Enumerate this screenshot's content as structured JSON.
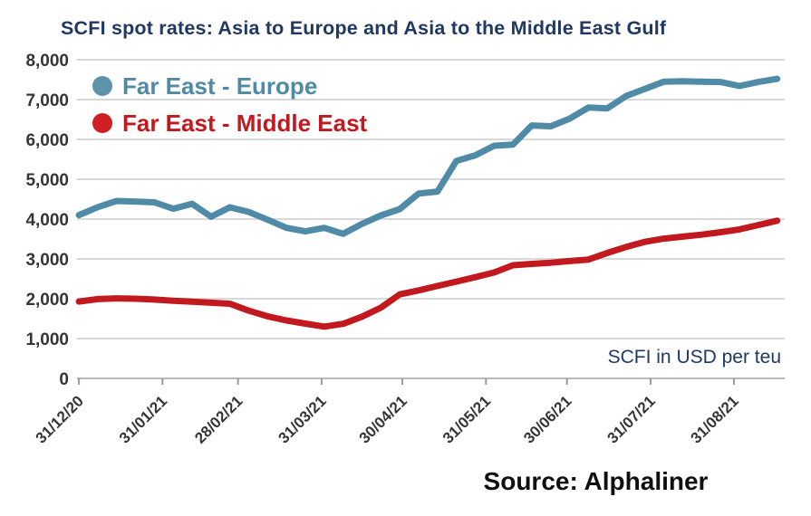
{
  "header": {
    "title": "SCFI spot rates: Asia to Europe and Asia to the Middle East Gulf"
  },
  "footer": {
    "source": "Source: Alphaliner"
  },
  "colors": {
    "title_navy": "#1f3864",
    "europe_line": "#4f8ba6",
    "europe_marker": "#5e93ac",
    "middle_east_line": "#c2191f",
    "middle_east_marker": "#d11f26",
    "axis_text": "#353535",
    "gridline": "#d9d9d9",
    "axis_line": "#b9b9b9",
    "tick_mark": "#9a9a9a",
    "background": "#ffffff"
  },
  "chart_data": {
    "type": "line",
    "title": "SCFI spot rates: Asia to Europe and Asia to the Middle East Gulf",
    "xlabel": "",
    "ylabel": "",
    "annotation": "SCFI in USD per teu",
    "source": "Source: Alphaliner",
    "ylim": [
      0,
      8000
    ],
    "y_ticks": [
      0,
      1000,
      2000,
      3000,
      4000,
      5000,
      6000,
      7000,
      8000
    ],
    "y_tick_labels": [
      "0",
      "1,000",
      "2,000",
      "3,000",
      "4,000",
      "5,000",
      "6,000",
      "7,000",
      "8,000"
    ],
    "grid": "horizontal",
    "legend_position": "inside-top-left",
    "x_unit": "weekly observations, 31/12/20 to mid-Sep 21",
    "x_tick_labels": [
      "31/12/20",
      "31/01/21",
      "28/02/21",
      "31/03/21",
      "30/04/21",
      "31/05/21",
      "30/06/21",
      "31/07/21",
      "31/08/21"
    ],
    "x_tick_positions_weeks": [
      0,
      4.43,
      8.43,
      12.86,
      17.14,
      21.57,
      25.86,
      30.29,
      34.71
    ],
    "x_domain_weeks": [
      -0.1,
      37.4
    ],
    "series": [
      {
        "name": "Far East - Europe",
        "color": "#4f8ba6",
        "marker_color": "#5e93ac",
        "values": [
          4100,
          4300,
          4455,
          4440,
          4420,
          4260,
          4385,
          4060,
          4295,
          4180,
          3985,
          3780,
          3690,
          3780,
          3630,
          3880,
          4090,
          4250,
          4640,
          4690,
          5460,
          5600,
          5840,
          5870,
          6350,
          6330,
          6520,
          6800,
          6780,
          7090,
          7270,
          7450,
          7460,
          7450,
          7440,
          7340,
          7440,
          7520
        ]
      },
      {
        "name": "Far East - Middle East",
        "color": "#c2191f",
        "marker_color": "#d11f26",
        "values": [
          1930,
          1990,
          2010,
          2000,
          1980,
          1950,
          1925,
          1900,
          1875,
          1700,
          1560,
          1455,
          1375,
          1300,
          1370,
          1550,
          1775,
          2110,
          2210,
          2320,
          2430,
          2540,
          2660,
          2840,
          2875,
          2905,
          2945,
          2985,
          3150,
          3300,
          3430,
          3510,
          3560,
          3610,
          3670,
          3740,
          3850,
          3960
        ]
      }
    ]
  }
}
